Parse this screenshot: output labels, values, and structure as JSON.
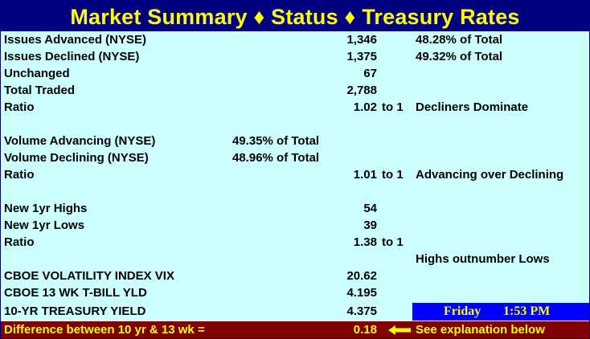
{
  "title": "Market Summary ♦ Status ♦ Treasury Rates",
  "rows": [
    {
      "label": "Issues Advanced (NYSE)",
      "value": "1,346",
      "note": "48.28% of Total"
    },
    {
      "label": "Issues Declined (NYSE)",
      "value": "1,375",
      "note": "49.32% of Total"
    },
    {
      "label": "Unchanged",
      "value": "67"
    },
    {
      "label": "Total Traded",
      "value": "2,788"
    },
    {
      "label": "Ratio",
      "value": "1.02",
      "to": "to 1",
      "note": "Decliners Dominate"
    },
    {
      "label": "Volume Advancing (NYSE)",
      "mid": "49.35% of Total"
    },
    {
      "label": "Volume Declining (NYSE)",
      "mid": "48.96% of Total"
    },
    {
      "label": "Ratio",
      "value": "1.01",
      "to": "to 1",
      "note": "Advancing over Declining"
    },
    {
      "label": "New 1yr Highs",
      "value": "54"
    },
    {
      "label": "New 1yr Lows",
      "value": "39"
    },
    {
      "label": "Ratio",
      "value": "1.38",
      "to": "to 1"
    },
    {
      "note": "Highs outnumber Lows"
    },
    {
      "label": "CBOE VOLATILITY INDEX VIX",
      "value": "20.62"
    },
    {
      "label": "CBOE 13 WK T-BILL YLD",
      "value": "4.195"
    },
    {
      "label": "10-YR TREASURY YIELD",
      "value": "4.375"
    }
  ],
  "clock": {
    "day": "Friday",
    "time": "1:53 PM"
  },
  "footer": {
    "label": "Difference between 10 yr & 13 wk =",
    "value": "0.18",
    "note": "See explanation below"
  },
  "colors": {
    "header_bg": "#000080",
    "title": "#ffff00",
    "panel_bg": "#ccffff",
    "clock_bg": "#0000ff",
    "footer_bg": "#800000"
  },
  "icons": {
    "footer_pointer": "left-arrow-icon"
  }
}
